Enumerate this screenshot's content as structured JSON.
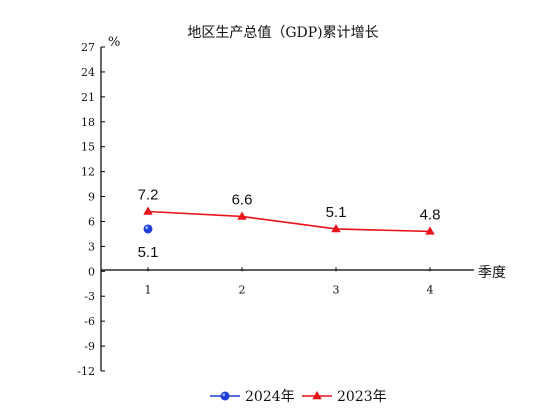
{
  "chart_data": {
    "type": "line",
    "title": "地区生产总值（GDP)累计增长",
    "ylabel": "%",
    "xlabel": "季度",
    "ylim": [
      -12,
      27
    ],
    "yticks": [
      -12,
      -9,
      -6,
      -3,
      0,
      3,
      6,
      9,
      12,
      15,
      18,
      21,
      24,
      27
    ],
    "categories": [
      "1",
      "2",
      "3",
      "4"
    ],
    "grid": false,
    "legend_position": "bottom",
    "series": [
      {
        "name": "2024年",
        "marker": "circle",
        "color": "#1f3fd6",
        "values": [
          5.1,
          null,
          null,
          null
        ],
        "labels": [
          "5.1",
          "",
          "",
          ""
        ]
      },
      {
        "name": "2023年",
        "marker": "triangle",
        "color": "#e8141b",
        "values": [
          7.2,
          6.6,
          5.1,
          4.8
        ],
        "labels": [
          "7.2",
          "6.6",
          "5.1",
          "4.8"
        ]
      }
    ]
  }
}
